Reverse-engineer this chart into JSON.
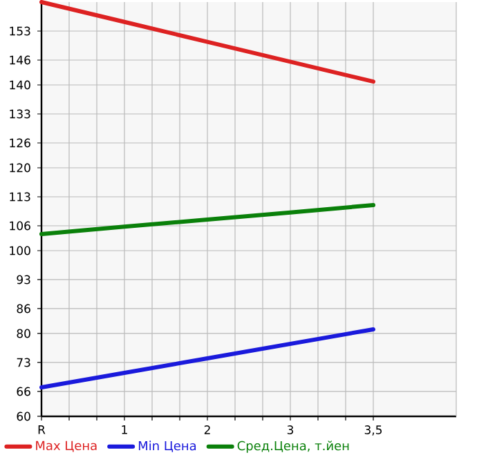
{
  "chart_data": {
    "type": "line",
    "categories": [
      "R",
      "1",
      "2",
      "3",
      "3,5"
    ],
    "ylim": [
      60,
      160
    ],
    "yticks": [
      60,
      66,
      73,
      80,
      86,
      93,
      100,
      106,
      113,
      120,
      126,
      133,
      140,
      146,
      153
    ],
    "series": [
      {
        "name": "Max Цена",
        "color": "#dd2222",
        "values": [
          160,
          155.2,
          150.4,
          145.6,
          140.8
        ]
      },
      {
        "name": "Min Цена",
        "color": "#1a1adc",
        "values": [
          67,
          70.5,
          74,
          77.5,
          81
        ]
      },
      {
        "name": "Сред.Цена, т.йен",
        "color": "#0a800a",
        "values": [
          104,
          105.8,
          107.5,
          109.2,
          111
        ]
      }
    ],
    "grid": true,
    "legend": "bottom"
  }
}
